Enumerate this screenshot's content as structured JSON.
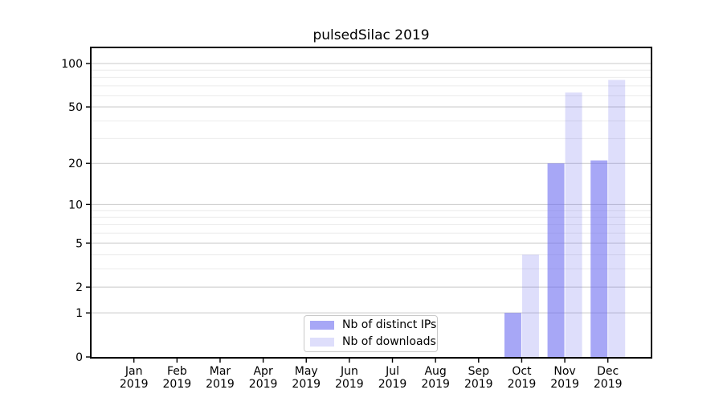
{
  "figure": {
    "background": "#ffffff"
  },
  "chart_data": {
    "type": "bar",
    "title": "pulsedSilac 2019",
    "xlabel": "",
    "ylabel": "",
    "categories": [
      "Jan",
      "Feb",
      "Mar",
      "Apr",
      "May",
      "Jun",
      "Jul",
      "Aug",
      "Sep",
      "Oct",
      "Nov",
      "Dec"
    ],
    "x_tick_year": "2019",
    "series": [
      {
        "name": "Nb of distinct IPs",
        "color": "rgba(104,104,239,0.58)",
        "values": [
          0,
          0,
          0,
          0,
          0,
          0,
          0,
          0,
          0,
          1,
          20,
          21
        ]
      },
      {
        "name": "Nb of downloads",
        "color": "rgba(104,104,239,0.22)",
        "values": [
          0,
          0,
          0,
          0,
          0,
          0,
          0,
          0,
          0,
          4,
          63,
          77
        ]
      }
    ],
    "y_axis": {
      "scale": "log1p",
      "major_ticks": [
        0,
        1,
        2,
        5,
        10,
        20,
        50,
        100
      ],
      "minor_ticks": [
        3,
        4,
        6,
        7,
        8,
        9,
        30,
        40,
        60,
        70,
        80,
        90
      ],
      "limit": 127.4
    },
    "grid": {
      "enabled": true,
      "major_color": "#c9c9c9",
      "minor_color": "#ebebeb"
    },
    "legend": {
      "position": "lower center inside"
    },
    "spine_color": "#000000",
    "text_color": "#000000"
  }
}
